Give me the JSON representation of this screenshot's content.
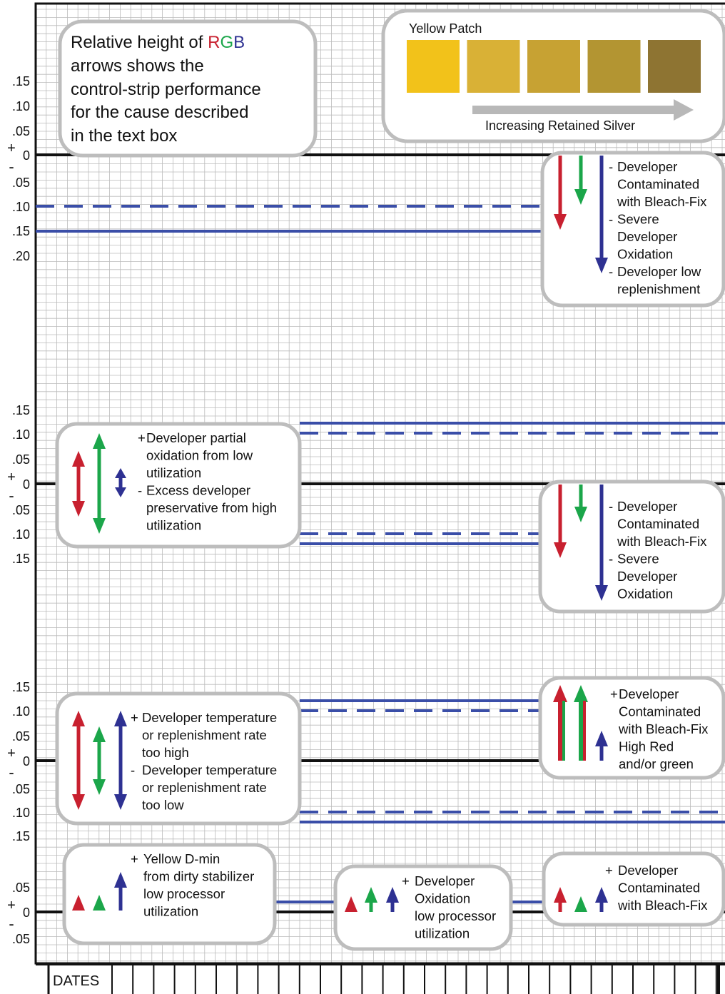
{
  "legend": {
    "line1_prefix": "Relative height of ",
    "r": "R",
    "g": "G",
    "b": "B",
    "line2": "arrows shows the",
    "line3": "control-strip performance",
    "line4": "for the cause described",
    "line5": "in the text box"
  },
  "patch": {
    "title": "Yellow Patch",
    "arrow_label": "Increasing Retained Silver",
    "swatches": [
      "#F2C21A",
      "#D9B136",
      "#C7A233",
      "#B39532",
      "#8E7432"
    ]
  },
  "colors": {
    "red": "#C8202F",
    "green": "#1BA64A",
    "blue": "#2E3192",
    "line_blue": "#3A4EA8",
    "grid": "#BBBBBB"
  },
  "sections": [
    {
      "plus_minus": [
        "+",
        "-"
      ],
      "ticks_above": [
        ".15",
        ".10",
        ".05"
      ],
      "zero": "0",
      "ticks_below": [
        ".05",
        ".10",
        ".15",
        ".20"
      ],
      "right_box": [
        "- Developer",
        "  Contaminated",
        "  with Bleach-Fix",
        "- Severe",
        "  Developer",
        "  Oxidation",
        "- Developer low",
        "  replenishment"
      ]
    },
    {
      "plus_minus": [
        "+",
        "-"
      ],
      "ticks_above": [
        ".15",
        ".10",
        ".05"
      ],
      "zero": "0",
      "ticks_below": [
        ".05",
        ".10",
        ".15"
      ],
      "left_box": [
        "+ Developer partial",
        "  oxidation from low",
        "  utilization",
        "- Excess developer",
        "  preservative from high",
        "  utilization"
      ],
      "right_box": [
        "- Developer",
        "  Contaminated",
        "  with Bleach-Fix",
        "- Severe",
        "  Developer",
        "  Oxidation"
      ]
    },
    {
      "plus_minus": [
        "+",
        "-"
      ],
      "ticks_above": [
        ".15",
        ".10",
        ".05"
      ],
      "zero": "0",
      "ticks_below": [
        ".05",
        ".10",
        ".15"
      ],
      "left_box": [
        "+ Developer temperature",
        "  or replenishment rate",
        "  too high",
        "- Developer temperature",
        "  or replenishment rate",
        "  too low"
      ],
      "right_box": [
        "+ Developer",
        "  Contaminated",
        "  with Bleach-Fix",
        "  High Red",
        "  and/or green"
      ]
    },
    {
      "plus_minus": [
        "+",
        "-"
      ],
      "ticks_above": [
        ".05"
      ],
      "zero": "0",
      "ticks_below": [
        ".05"
      ],
      "left_box": [
        "+ Yellow D-min",
        "  from dirty stabilizer",
        "  low processor",
        "  utilization"
      ],
      "mid_box": [
        "+ Developer",
        "  Oxidation",
        "  low processor",
        "  utilization"
      ],
      "right_box": [
        "+ Developer",
        "  Contaminated",
        "  with Bleach-Fix"
      ]
    }
  ],
  "footer": {
    "dates_label": "DATES"
  }
}
